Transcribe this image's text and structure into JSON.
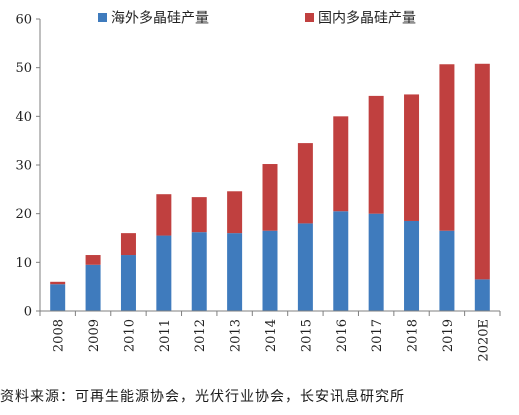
{
  "chart_data": {
    "type": "bar",
    "stacked": true,
    "categories": [
      "2008",
      "2009",
      "2010",
      "2011",
      "2012",
      "2013",
      "2014",
      "2015",
      "2016",
      "2017",
      "2018",
      "2019",
      "2020E"
    ],
    "series": [
      {
        "name": "海外多晶硅产量",
        "color": "#3f7bbd",
        "values": [
          5.5,
          9.5,
          11.5,
          15.5,
          16.2,
          16.0,
          16.5,
          18.0,
          20.5,
          20.0,
          18.5,
          16.5,
          6.5
        ]
      },
      {
        "name": "国内多晶硅产量",
        "color": "#c0403f",
        "values": [
          0.5,
          2.0,
          4.5,
          8.5,
          7.2,
          8.6,
          13.7,
          16.5,
          19.5,
          24.2,
          26.0,
          34.2,
          44.3
        ]
      }
    ],
    "ylim": [
      0,
      60
    ],
    "yticks": [
      "0",
      "10",
      "20",
      "30",
      "40",
      "50",
      "60"
    ],
    "legend_position": "top",
    "grid": false
  },
  "source_text": "资料来源：可再生能源协会，光伏行业协会，长安讯息研究所"
}
